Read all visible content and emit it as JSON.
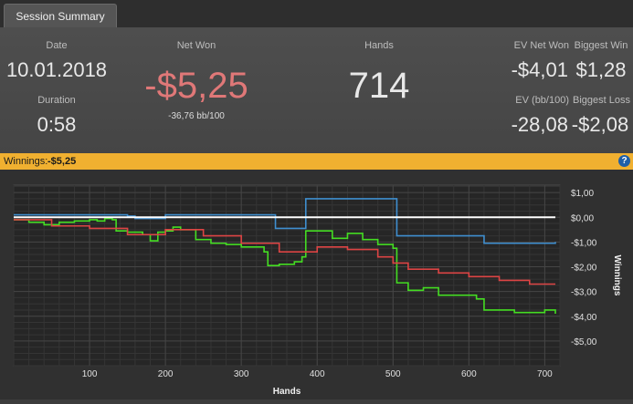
{
  "tab": {
    "label": "Session Summary"
  },
  "summary": {
    "date": {
      "label": "Date",
      "value": "10.01.2018"
    },
    "duration": {
      "label": "Duration",
      "value": "0:58"
    },
    "net_won": {
      "label": "Net Won",
      "value": "-$5,25",
      "sub": "-36,76 bb/100"
    },
    "hands": {
      "label": "Hands",
      "value": "714"
    },
    "ev_net_won": {
      "label": "EV Net Won",
      "value": "-$4,01"
    },
    "biggest_win": {
      "label": "Biggest Win",
      "value": "$1,28"
    },
    "ev_bb100": {
      "label": "EV (bb/100)",
      "value": "-28,08"
    },
    "biggest_loss": {
      "label": "Biggest Loss",
      "value": "-$2,08"
    }
  },
  "winnings_bar": {
    "label": "Winnings:",
    "value": "-$5,25",
    "help_icon": "help-icon"
  },
  "colors": {
    "green": "#44dd22",
    "red": "#dd4444",
    "blue": "#3f8fd0",
    "bar": "#f0b030"
  },
  "chart_data": {
    "type": "line",
    "xlabel": "Hands",
    "ylabel": "Winnings",
    "xlim": [
      0,
      720
    ],
    "ylim": [
      -6.0,
      1.3
    ],
    "xticks": [
      100,
      200,
      300,
      400,
      500,
      600,
      700
    ],
    "yticks": [
      1,
      0,
      -1,
      -2,
      -3,
      -4,
      -5
    ],
    "ytick_labels": [
      "$1,00",
      "$0,00",
      "-$1,00",
      "-$2,00",
      "-$3,00",
      "-$4,00",
      "-$5,00"
    ],
    "series": [
      {
        "name": "",
        "color": "#44dd22",
        "x": [
          0,
          20,
          40,
          60,
          80,
          100,
          110,
          120,
          130,
          135,
          150,
          170,
          180,
          190,
          200,
          210,
          220,
          240,
          260,
          280,
          300,
          330,
          335,
          350,
          370,
          380,
          385,
          400,
          420,
          440,
          460,
          480,
          500,
          505,
          520,
          540,
          560,
          600,
          610,
          620,
          660,
          700,
          714
        ],
        "y": [
          -0.1,
          -0.2,
          -0.3,
          -0.2,
          -0.15,
          -0.1,
          -0.15,
          -0.05,
          -0.1,
          -0.55,
          -0.6,
          -0.7,
          -0.95,
          -0.6,
          -0.55,
          -0.4,
          -0.5,
          -0.9,
          -1.05,
          -1.1,
          -1.2,
          -1.4,
          -1.95,
          -1.9,
          -1.8,
          -1.6,
          -0.55,
          -0.55,
          -0.85,
          -0.65,
          -0.9,
          -1.1,
          -1.25,
          -2.65,
          -2.95,
          -2.85,
          -3.15,
          -3.15,
          -3.3,
          -3.75,
          -3.85,
          -3.75,
          -3.9
        ],
        "note": ""
      },
      {
        "name": "",
        "color": "#dd4444",
        "x": [
          0,
          50,
          100,
          150,
          200,
          250,
          300,
          350,
          380,
          400,
          440,
          480,
          500,
          520,
          560,
          600,
          640,
          680,
          714
        ],
        "y": [
          -0.1,
          -0.35,
          -0.45,
          -0.7,
          -0.5,
          -0.75,
          -1.05,
          -1.4,
          -1.4,
          -1.2,
          -1.3,
          -1.6,
          -1.85,
          -2.1,
          -2.25,
          -2.4,
          -2.55,
          -2.7,
          -2.7
        ]
      },
      {
        "name": "",
        "color": "#3f8fd0",
        "x": [
          0,
          10,
          150,
          160,
          200,
          340,
          345,
          380,
          385,
          500,
          505,
          550,
          600,
          620,
          714
        ],
        "y": [
          0.1,
          0.1,
          0.05,
          -0.05,
          0.1,
          0.1,
          -0.45,
          -0.45,
          0.75,
          0.75,
          -0.75,
          -0.75,
          -0.75,
          -1.05,
          -1.0
        ]
      },
      {
        "name": "",
        "color": "#ffffff",
        "x": [
          0,
          714
        ],
        "y": [
          0,
          0
        ]
      }
    ]
  }
}
